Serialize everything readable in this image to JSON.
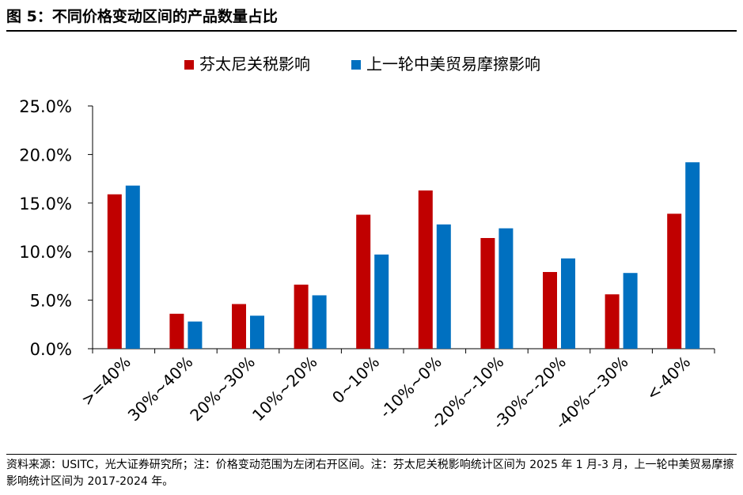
{
  "figure": {
    "title": "图 5：不同价格变动区间的产品数量占比",
    "source": "资料来源：USITC，光大证券研究所；注：价格变动范围为左闭右开区间。注：芬太尼关税影响统计区间为 2025 年 1 月-3 月，上一轮中美贸易摩擦影响统计区间为 2017-2024 年。"
  },
  "chart_data": {
    "type": "bar",
    "categories": [
      ">=40%",
      "30%~40%",
      "20%~30%",
      "10%~20%",
      "0~10%",
      "-10%~0%",
      "-20%~-10%",
      "-30%~-20%",
      "-40%~-30%",
      "<-40%"
    ],
    "series": [
      {
        "name": "芬太尼关税影响",
        "color": "#C00000",
        "values": [
          15.9,
          3.6,
          4.6,
          6.6,
          13.8,
          16.3,
          11.4,
          7.9,
          5.6,
          13.9
        ]
      },
      {
        "name": "上一轮中美贸易摩擦影响",
        "color": "#0070C0",
        "values": [
          16.8,
          2.8,
          3.4,
          5.5,
          9.7,
          12.8,
          12.4,
          9.3,
          7.8,
          19.2
        ]
      }
    ],
    "ylim": [
      0,
      25
    ],
    "yticks": [
      "0.0%",
      "5.0%",
      "10.0%",
      "15.0%",
      "20.0%",
      "25.0%"
    ],
    "ytick_values": [
      0,
      5,
      10,
      15,
      20,
      25
    ],
    "legend_position": "top-center",
    "grid": false
  }
}
